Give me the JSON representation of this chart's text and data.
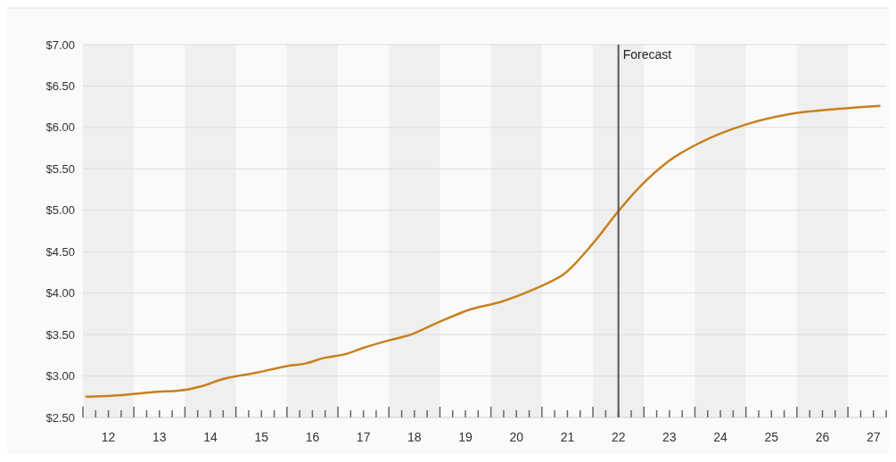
{
  "chart_data": {
    "type": "line",
    "x": [
      12.07,
      12.14,
      12.76,
      13.47,
      13.84,
      14.35,
      14.67,
      15.41,
      16.0,
      16.36,
      16.74,
      17.12,
      17.5,
      18.0,
      18.38,
      18.94,
      19.58,
      20.22,
      20.78,
      21.0,
      21.43,
      22.0,
      22.5,
      22.9,
      23.5,
      24.08,
      24.97,
      25.85,
      26.73,
      27.62
    ],
    "series": [
      {
        "color": "#c8801e",
        "values": [
          2.75,
          2.75,
          2.77,
          2.81,
          2.82,
          2.88,
          2.95,
          3.04,
          3.12,
          3.15,
          3.22,
          3.26,
          3.34,
          3.43,
          3.49,
          3.64,
          3.8,
          3.9,
          4.03,
          4.09,
          4.23,
          4.6,
          4.99,
          5.27,
          5.6,
          5.81,
          6.03,
          6.16,
          6.22,
          6.26
        ]
      }
    ],
    "xlim": [
      12,
      27.75
    ],
    "xticks": [
      {
        "value": 12,
        "label": null
      },
      {
        "value": 12.25,
        "label": null
      },
      {
        "value": 12.5,
        "label": "12"
      },
      {
        "value": 12.75,
        "label": null
      },
      {
        "value": 13,
        "label": null
      },
      {
        "value": 13.25,
        "label": null
      },
      {
        "value": 13.5,
        "label": "13"
      },
      {
        "value": 13.75,
        "label": null
      },
      {
        "value": 14,
        "label": null
      },
      {
        "value": 14.25,
        "label": null
      },
      {
        "value": 14.5,
        "label": "14"
      },
      {
        "value": 14.75,
        "label": null
      },
      {
        "value": 15,
        "label": null
      },
      {
        "value": 15.25,
        "label": null
      },
      {
        "value": 15.5,
        "label": "15"
      },
      {
        "value": 15.75,
        "label": null
      },
      {
        "value": 16,
        "label": null
      },
      {
        "value": 16.25,
        "label": null
      },
      {
        "value": 16.5,
        "label": "16"
      },
      {
        "value": 16.75,
        "label": null
      },
      {
        "value": 17,
        "label": null
      },
      {
        "value": 17.25,
        "label": null
      },
      {
        "value": 17.5,
        "label": "17"
      },
      {
        "value": 17.75,
        "label": null
      },
      {
        "value": 18,
        "label": null
      },
      {
        "value": 18.25,
        "label": null
      },
      {
        "value": 18.5,
        "label": "18"
      },
      {
        "value": 18.75,
        "label": null
      },
      {
        "value": 19,
        "label": null
      },
      {
        "value": 19.25,
        "label": null
      },
      {
        "value": 19.5,
        "label": "19"
      },
      {
        "value": 19.75,
        "label": null
      },
      {
        "value": 20,
        "label": null
      },
      {
        "value": 20.25,
        "label": null
      },
      {
        "value": 20.5,
        "label": "20"
      },
      {
        "value": 20.75,
        "label": null
      },
      {
        "value": 21,
        "label": null
      },
      {
        "value": 21.25,
        "label": null
      },
      {
        "value": 21.5,
        "label": "21"
      },
      {
        "value": 21.75,
        "label": null
      },
      {
        "value": 22,
        "label": null
      },
      {
        "value": 22.25,
        "label": null
      },
      {
        "value": 22.5,
        "label": "22"
      },
      {
        "value": 22.75,
        "label": null
      },
      {
        "value": 23,
        "label": null
      },
      {
        "value": 23.25,
        "label": null
      },
      {
        "value": 23.5,
        "label": "23"
      },
      {
        "value": 23.75,
        "label": null
      },
      {
        "value": 24,
        "label": null
      },
      {
        "value": 24.25,
        "label": null
      },
      {
        "value": 24.5,
        "label": "24"
      },
      {
        "value": 24.75,
        "label": null
      },
      {
        "value": 25,
        "label": null
      },
      {
        "value": 25.25,
        "label": null
      },
      {
        "value": 25.5,
        "label": "25"
      },
      {
        "value": 25.75,
        "label": null
      },
      {
        "value": 26,
        "label": null
      },
      {
        "value": 26.25,
        "label": null
      },
      {
        "value": 26.5,
        "label": "26"
      },
      {
        "value": 26.75,
        "label": null
      },
      {
        "value": 27,
        "label": null
      },
      {
        "value": 27.25,
        "label": null
      },
      {
        "value": 27.5,
        "label": "27"
      },
      {
        "value": 27.75,
        "label": null
      }
    ],
    "ylim": [
      2.5,
      7
    ],
    "yticks": [
      {
        "value": 2.5,
        "label": "$2.50"
      },
      {
        "value": 3,
        "label": "$3.00"
      },
      {
        "value": 3.5,
        "label": "$3.50"
      },
      {
        "value": 4,
        "label": "$4.00"
      },
      {
        "value": 4.5,
        "label": "$4.50"
      },
      {
        "value": 5,
        "label": "$5.00"
      },
      {
        "value": 5.5,
        "label": "$5.50"
      },
      {
        "value": 6,
        "label": "$6.00"
      },
      {
        "value": 6.5,
        "label": "$6.50"
      },
      {
        "value": 7,
        "label": "$7.00"
      }
    ],
    "grid": "y",
    "ref_lines": [
      {
        "axis": "x",
        "value": 22.5,
        "label": "Forecast",
        "color": "#555555"
      }
    ],
    "bands": [
      {
        "axis": "x",
        "from": 12,
        "to": 13,
        "color": "#efefef"
      },
      {
        "axis": "x",
        "from": 14,
        "to": 15,
        "color": "#efefef"
      },
      {
        "axis": "x",
        "from": 16,
        "to": 17,
        "color": "#efefef"
      },
      {
        "axis": "x",
        "from": 18,
        "to": 19,
        "color": "#efefef"
      },
      {
        "axis": "x",
        "from": 20,
        "to": 21,
        "color": "#efefef"
      },
      {
        "axis": "x",
        "from": 22,
        "to": 23,
        "color": "#efefef"
      },
      {
        "axis": "x",
        "from": 24,
        "to": 25,
        "color": "#efefef"
      },
      {
        "axis": "x",
        "from": 26,
        "to": 27,
        "color": "#efefef"
      }
    ]
  }
}
